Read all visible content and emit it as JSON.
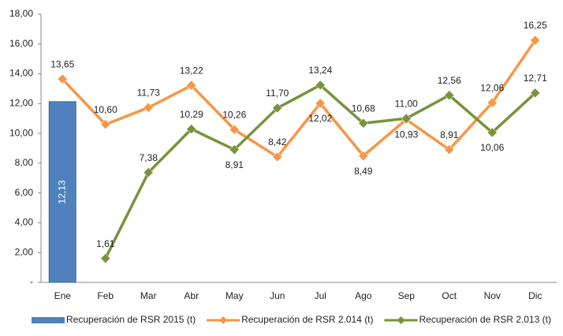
{
  "chart_data": {
    "type": "bar-line",
    "categories": [
      "Ene",
      "Feb",
      "Mar",
      "Abr",
      "May",
      "Jun",
      "Jul",
      "Ago",
      "Sep",
      "Oct",
      "Nov",
      "Dic"
    ],
    "series": [
      {
        "name": "Recuperación de RSR 2015 (t)",
        "type": "bar",
        "color": "#4f81bd",
        "values": [
          12.13,
          null,
          null,
          null,
          null,
          null,
          null,
          null,
          null,
          null,
          null,
          null
        ],
        "value_labels": [
          "12,13",
          null,
          null,
          null,
          null,
          null,
          null,
          null,
          null,
          null,
          null,
          null
        ]
      },
      {
        "name": "Recuperación de RSR 2.014 (t)",
        "type": "line",
        "color": "#f79646",
        "values": [
          13.65,
          10.6,
          11.73,
          13.22,
          10.26,
          8.42,
          12.02,
          8.49,
          10.93,
          8.91,
          12.06,
          16.25
        ],
        "value_labels": [
          "13,65",
          "10,60",
          "11,73",
          "13,22",
          "10,26",
          "8,42",
          "12,02",
          "8,49",
          "10,93",
          "8,91",
          "12,06",
          "16,25"
        ]
      },
      {
        "name": "Recuperación de RSR 2.013 (t)",
        "type": "line",
        "color": "#77933c",
        "values": [
          null,
          1.61,
          7.38,
          10.29,
          8.91,
          11.7,
          13.24,
          10.68,
          11.0,
          12.56,
          10.06,
          12.71
        ],
        "value_labels": [
          null,
          "1,61",
          "7,38",
          "10,29",
          "8,91",
          "11,70",
          "13,24",
          "10,68",
          "11,00",
          "12,56",
          "10,06",
          "12,71"
        ]
      }
    ],
    "ylim": [
      0,
      18
    ],
    "yticks": [
      {
        "value": 0,
        "label": "-"
      },
      {
        "value": 2,
        "label": "2,00"
      },
      {
        "value": 4,
        "label": "4,00"
      },
      {
        "value": 6,
        "label": "6,00"
      },
      {
        "value": 8,
        "label": "8,00"
      },
      {
        "value": 10,
        "label": "10,00"
      },
      {
        "value": 12,
        "label": "12,00"
      },
      {
        "value": 14,
        "label": "14,00"
      },
      {
        "value": 16,
        "label": "16,00"
      },
      {
        "value": 18,
        "label": "18,00"
      }
    ],
    "legend": "bottom"
  }
}
